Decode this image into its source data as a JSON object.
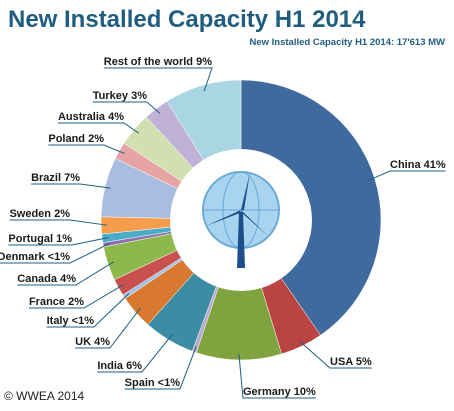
{
  "chart_data": {
    "type": "pie",
    "title": "New Installed Capacity H1 2014",
    "subtitle": "New Installed Capacity H1 2014: 17'613 MW",
    "footer": "© WWEA 2014",
    "categories": [
      "China",
      "USA",
      "Germany",
      "Spain",
      "India",
      "UK",
      "Italy",
      "France",
      "Canada",
      "Denmark",
      "Portugal",
      "Sweden",
      "Brazil",
      "Poland",
      "Australia",
      "Turkey",
      "Rest of the world"
    ],
    "values": [
      41,
      5,
      10,
      0.5,
      6,
      4,
      0.5,
      2,
      4,
      0.5,
      1,
      2,
      7,
      2,
      4,
      3,
      9
    ],
    "value_labels": [
      "41%",
      "5%",
      "10%",
      "<1%",
      "6%",
      "4%",
      "<1%",
      "2%",
      "4%",
      "<1%",
      "1%",
      "2%",
      "7%",
      "2%",
      "4%",
      "3%",
      "9%"
    ],
    "colors": [
      "#3f6a9e",
      "#b94441",
      "#7fa33e",
      "#b8a8d0",
      "#3c8da3",
      "#d9782f",
      "#9ec3e6",
      "#c8504d",
      "#8db84c",
      "#8d6fb0",
      "#4bacc6",
      "#f59d4c",
      "#a8bde0",
      "#e6a5a4",
      "#d2dfb0",
      "#bfb2d6",
      "#a9d6e2"
    ],
    "donut": true
  }
}
